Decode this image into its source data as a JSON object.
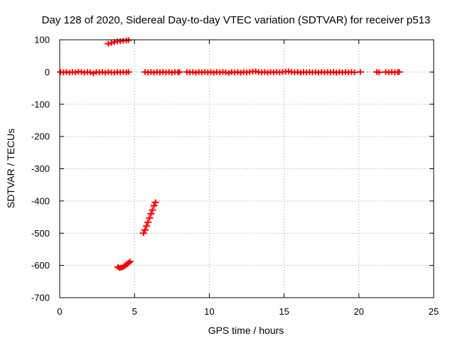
{
  "chart_data": {
    "type": "scatter",
    "title": "Day 128 of 2020, Sidereal Day-to-day VTEC variation (SDTVAR) for receiver p513",
    "xlabel": "GPS time / hours",
    "ylabel": "SDTVAR / TECUs",
    "xlim": [
      0,
      25
    ],
    "ylim": [
      -700,
      100
    ],
    "xticks": [
      0,
      5,
      10,
      15,
      20,
      25
    ],
    "yticks": [
      100,
      0,
      -100,
      -200,
      -300,
      -400,
      -500,
      -600,
      -700
    ],
    "grid": true,
    "color": "#ff0000",
    "series": [
      {
        "name": "SDTVAR",
        "points": [
          [
            0.05,
            0
          ],
          [
            0.25,
            -1
          ],
          [
            0.45,
            0
          ],
          [
            0.65,
            -2
          ],
          [
            0.85,
            0
          ],
          [
            1.05,
            -1
          ],
          [
            1.25,
            1
          ],
          [
            1.45,
            0
          ],
          [
            1.65,
            -2
          ],
          [
            1.85,
            0
          ],
          [
            2.05,
            -1
          ],
          [
            2.25,
            -4
          ],
          [
            2.45,
            0
          ],
          [
            2.65,
            -1
          ],
          [
            2.85,
            0
          ],
          [
            3.05,
            -2
          ],
          [
            3.25,
            0
          ],
          [
            3.45,
            -1
          ],
          [
            3.65,
            -2
          ],
          [
            3.85,
            0
          ],
          [
            4.05,
            -1
          ],
          [
            4.25,
            0
          ],
          [
            4.45,
            -1
          ],
          [
            4.6,
            0
          ],
          [
            3.25,
            88
          ],
          [
            3.45,
            90
          ],
          [
            3.65,
            93
          ],
          [
            3.85,
            95
          ],
          [
            4.05,
            96
          ],
          [
            4.25,
            97
          ],
          [
            4.45,
            98
          ],
          [
            4.6,
            99
          ],
          [
            3.9,
            -605
          ],
          [
            4.0,
            -608
          ],
          [
            4.1,
            -607
          ],
          [
            4.2,
            -606
          ],
          [
            4.3,
            -603
          ],
          [
            4.4,
            -600
          ],
          [
            4.5,
            -596
          ],
          [
            4.6,
            -592
          ],
          [
            4.7,
            -588
          ],
          [
            5.6,
            -500
          ],
          [
            5.7,
            -490
          ],
          [
            5.8,
            -478
          ],
          [
            5.9,
            -466
          ],
          [
            6.0,
            -453
          ],
          [
            6.1,
            -440
          ],
          [
            6.2,
            -428
          ],
          [
            6.3,
            -415
          ],
          [
            6.4,
            -404
          ],
          [
            5.7,
            0
          ],
          [
            5.9,
            -1
          ],
          [
            6.1,
            0
          ],
          [
            6.3,
            -2
          ],
          [
            6.5,
            0
          ],
          [
            6.7,
            -1
          ],
          [
            6.9,
            0
          ],
          [
            7.1,
            -1
          ],
          [
            7.3,
            0
          ],
          [
            7.5,
            -2
          ],
          [
            7.7,
            0
          ],
          [
            7.9,
            -1
          ],
          [
            8.0,
            0
          ],
          [
            8.5,
            0
          ],
          [
            8.7,
            -1
          ],
          [
            8.9,
            0
          ],
          [
            9.1,
            -2
          ],
          [
            9.3,
            0
          ],
          [
            9.5,
            -1
          ],
          [
            9.7,
            0
          ],
          [
            9.9,
            -1
          ],
          [
            10.1,
            0
          ],
          [
            10.3,
            -2
          ],
          [
            10.5,
            0
          ],
          [
            10.7,
            -1
          ],
          [
            10.9,
            0
          ],
          [
            11.1,
            -1
          ],
          [
            11.3,
            -3
          ],
          [
            11.5,
            0
          ],
          [
            11.7,
            -1
          ],
          [
            11.9,
            0
          ],
          [
            12.1,
            -2
          ],
          [
            12.3,
            0
          ],
          [
            12.5,
            -1
          ],
          [
            12.7,
            0
          ],
          [
            12.9,
            1
          ],
          [
            13.1,
            2
          ],
          [
            13.3,
            0
          ],
          [
            13.5,
            -1
          ],
          [
            13.7,
            0
          ],
          [
            13.9,
            -2
          ],
          [
            14.1,
            0
          ],
          [
            14.3,
            -1
          ],
          [
            14.5,
            0
          ],
          [
            14.7,
            -1
          ],
          [
            14.9,
            0
          ],
          [
            15.1,
            1
          ],
          [
            15.3,
            2
          ],
          [
            15.5,
            0
          ],
          [
            15.7,
            -1
          ],
          [
            15.9,
            0
          ],
          [
            16.1,
            -2
          ],
          [
            16.3,
            0
          ],
          [
            16.5,
            -1
          ],
          [
            16.7,
            0
          ],
          [
            16.9,
            -1
          ],
          [
            17.1,
            0
          ],
          [
            17.3,
            -2
          ],
          [
            17.5,
            0
          ],
          [
            17.7,
            -1
          ],
          [
            17.9,
            0
          ],
          [
            18.1,
            -1
          ],
          [
            18.3,
            0
          ],
          [
            18.5,
            -2
          ],
          [
            18.7,
            0
          ],
          [
            18.9,
            -1
          ],
          [
            19.1,
            0
          ],
          [
            19.3,
            -1
          ],
          [
            19.5,
            0
          ],
          [
            19.7,
            -1
          ],
          [
            20.1,
            0
          ],
          [
            21.2,
            0
          ],
          [
            21.35,
            -1
          ],
          [
            21.8,
            0
          ],
          [
            22.0,
            -1
          ],
          [
            22.2,
            0
          ],
          [
            22.4,
            -1
          ],
          [
            22.6,
            0
          ],
          [
            22.7,
            0
          ]
        ]
      }
    ]
  }
}
